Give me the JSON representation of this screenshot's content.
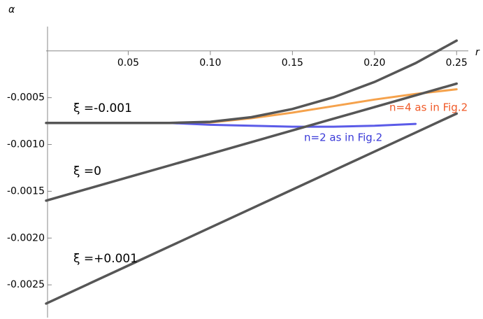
{
  "chart_data": {
    "type": "line",
    "x_label": "r",
    "y_label": "α",
    "x": [
      0,
      0.025,
      0.05,
      0.075,
      0.1,
      0.125,
      0.15,
      0.175,
      0.2,
      0.225,
      0.25
    ],
    "series": [
      {
        "name": "ξ =-0.001",
        "color": "#565656",
        "values": [
          -0.00077,
          -0.00077,
          -0.00077,
          -0.00077,
          -0.000758,
          -0.000708,
          -0.000621,
          -0.000496,
          -0.000332,
          -0.000131,
          0.00011
        ]
      },
      {
        "name": "ξ =0",
        "color": "#565656",
        "values": [
          -0.0016,
          -0.001475,
          -0.00135,
          -0.001225,
          -0.0011,
          -0.000975,
          -0.00085,
          -0.000725,
          -0.0006,
          -0.000475,
          -0.00035
        ]
      },
      {
        "name": "ξ =+0.001",
        "color": "#565656",
        "values": [
          -0.0027,
          -0.002497,
          -0.002294,
          -0.002091,
          -0.001888,
          -0.001685,
          -0.001482,
          -0.001279,
          -0.001076,
          -0.000873,
          -0.00067
        ]
      },
      {
        "name": "n=4 as in Fig.2",
        "color": "#f5a24c",
        "values": [
          null,
          null,
          null,
          -0.00077,
          -0.000765,
          -0.00072,
          -0.00066,
          -0.00059,
          -0.00052,
          -0.00046,
          -0.00041
        ]
      },
      {
        "name": "n=2 as in Fig.2",
        "color": "#5b5be8",
        "values": [
          null,
          null,
          null,
          -0.00077,
          -0.00079,
          -0.0008,
          -0.00081,
          -0.00081,
          -0.0008,
          -0.00078,
          null
        ]
      }
    ],
    "xlim": [
      0,
      0.255
    ],
    "ylim": [
      -0.00285,
      0.0002
    ],
    "xticks": [
      0.05,
      {
        "value": 0.1,
        "label": "0.10"
      },
      0.15,
      {
        "value": 0.2,
        "label": "0.20"
      },
      0.25
    ],
    "yticks": [
      -0.0005,
      {
        "value": -0.001,
        "label": "-0.0010"
      },
      -0.0015,
      {
        "value": -0.002,
        "label": "-0.0020"
      },
      -0.0025
    ],
    "grid": false
  }
}
